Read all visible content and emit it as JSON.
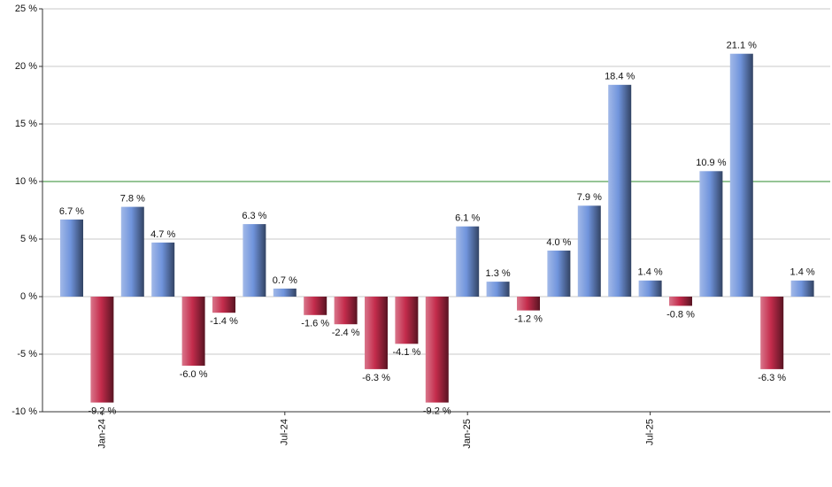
{
  "chart_data": {
    "type": "bar",
    "categories": [
      null,
      "Jan-24",
      null,
      null,
      null,
      null,
      null,
      "Jul-24",
      null,
      null,
      null,
      null,
      null,
      "Jan-25",
      null,
      null,
      null,
      null,
      null,
      "Jul-25",
      null,
      null,
      null,
      null,
      null
    ],
    "values": [
      6.7,
      -9.2,
      7.8,
      4.7,
      -6.0,
      -1.4,
      6.3,
      0.7,
      -1.6,
      -2.4,
      -6.3,
      -4.1,
      -9.2,
      6.1,
      1.3,
      -1.2,
      4.0,
      7.9,
      18.4,
      1.4,
      -0.8,
      10.9,
      21.1,
      -6.3,
      1.4
    ],
    "value_labels": [
      "6.7 %",
      "-9.2 %",
      "7.8 %",
      "4.7 %",
      "-6.0 %",
      "-1.4 %",
      "6.3 %",
      "0.7 %",
      "-1.6 %",
      "-2.4 %",
      "-6.3 %",
      "-4.1 %",
      "-9.2 %",
      "6.1 %",
      "1.3 %",
      "-1.2 %",
      "4.0 %",
      "7.9 %",
      "18.4 %",
      "1.4 %",
      "-0.8 %",
      "10.9 %",
      "21.1 %",
      "-6.3 %",
      "1.4 %"
    ],
    "positive_color": "#7094dc",
    "negative_color": "#c42c4c",
    "ylim": [
      -10,
      25
    ],
    "yticks": [
      {
        "value": -10,
        "label": "-10 %"
      },
      {
        "value": -5,
        "label": "-5 %"
      },
      {
        "value": 0,
        "label": "0 %"
      },
      {
        "value": 5,
        "label": "5 %"
      },
      {
        "value": 10,
        "label": "10 %"
      },
      {
        "value": 15,
        "label": "15 %"
      },
      {
        "value": 20,
        "label": "20 %"
      },
      {
        "value": 25,
        "label": "25 %"
      }
    ],
    "grid": true,
    "reference_line": 10,
    "reference_line_color": "#2e8b2e"
  }
}
